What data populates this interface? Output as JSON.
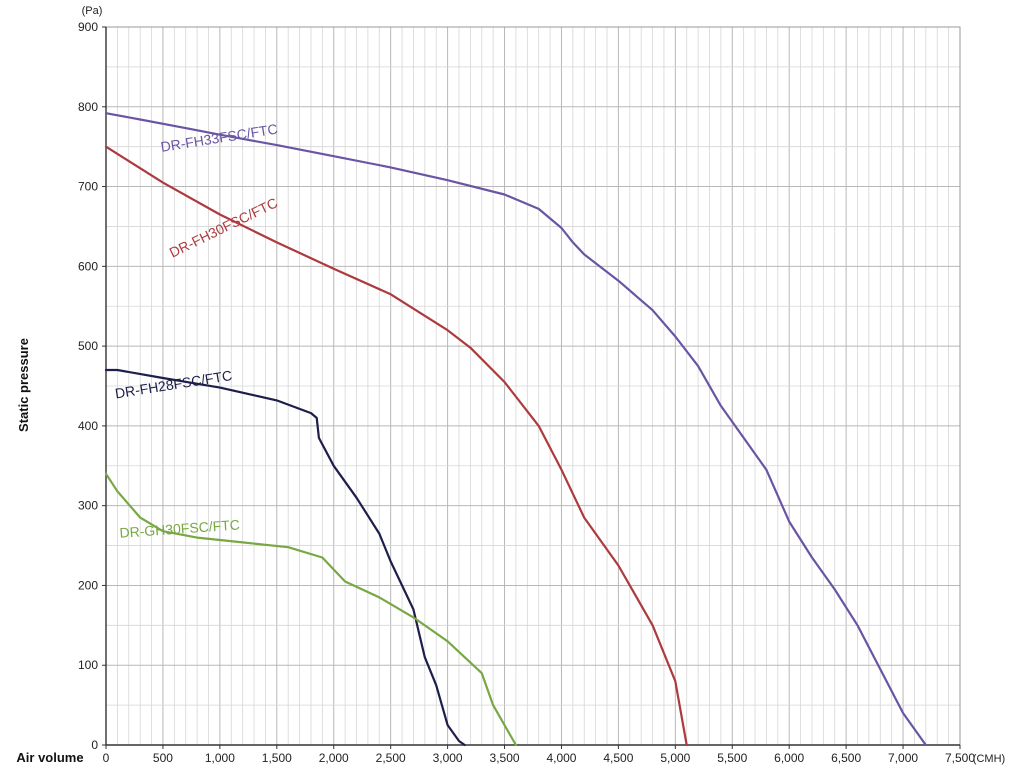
{
  "chart_data": {
    "type": "line",
    "xlabel": "Air volume",
    "ylabel": "Static pressure",
    "x_unit": "(CMH)",
    "y_unit": "(Pa)",
    "xlim": [
      0,
      7500
    ],
    "ylim": [
      0,
      900
    ],
    "x_major_ticks": [
      0,
      500,
      1000,
      1500,
      2000,
      2500,
      3000,
      3500,
      4000,
      4500,
      5000,
      5500,
      6000,
      6500,
      7000,
      7500
    ],
    "x_tick_labels": [
      "0",
      "500",
      "1,000",
      "1,500",
      "2,000",
      "2,500",
      "3,000",
      "3,500",
      "4,000",
      "4,500",
      "5,000",
      "5,500",
      "6,000",
      "6,500",
      "7,000",
      "7,500"
    ],
    "y_major_ticks": [
      0,
      100,
      200,
      300,
      400,
      500,
      600,
      700,
      800,
      900
    ],
    "y_tick_labels": [
      "0",
      "100",
      "200",
      "300",
      "400",
      "500",
      "600",
      "700",
      "800",
      "900"
    ],
    "x_minor_step": 100,
    "y_minor_step": 50,
    "grid": true,
    "series": [
      {
        "name": "DR-FH33FSC/FTC",
        "color": "#6a55a4",
        "label_at": [
          1000,
          755
        ],
        "label_angle": -9,
        "points": [
          [
            0,
            792
          ],
          [
            300,
            784
          ],
          [
            600,
            776
          ],
          [
            1000,
            765
          ],
          [
            1500,
            752
          ],
          [
            2000,
            738
          ],
          [
            2500,
            724
          ],
          [
            3000,
            708
          ],
          [
            3500,
            690
          ],
          [
            3800,
            672
          ],
          [
            4000,
            648
          ],
          [
            4100,
            630
          ],
          [
            4200,
            615
          ],
          [
            4500,
            582
          ],
          [
            4800,
            545
          ],
          [
            5000,
            512
          ],
          [
            5200,
            475
          ],
          [
            5400,
            425
          ],
          [
            5600,
            385
          ],
          [
            5800,
            345
          ],
          [
            6000,
            280
          ],
          [
            6200,
            235
          ],
          [
            6400,
            195
          ],
          [
            6600,
            150
          ],
          [
            6800,
            95
          ],
          [
            7000,
            40
          ],
          [
            7200,
            0
          ]
        ]
      },
      {
        "name": "DR-FH30FSC/FTC",
        "color": "#ad3a3d",
        "label_at": [
          1050,
          643
        ],
        "label_angle": -26,
        "points": [
          [
            0,
            750
          ],
          [
            500,
            705
          ],
          [
            1000,
            665
          ],
          [
            1500,
            630
          ],
          [
            2000,
            597
          ],
          [
            2500,
            565
          ],
          [
            3000,
            520
          ],
          [
            3200,
            498
          ],
          [
            3500,
            455
          ],
          [
            3800,
            400
          ],
          [
            4000,
            345
          ],
          [
            4200,
            285
          ],
          [
            4500,
            225
          ],
          [
            4800,
            150
          ],
          [
            5000,
            80
          ],
          [
            5100,
            0
          ]
        ]
      },
      {
        "name": "DR-FH28FSC/FTC",
        "color": "#1e1e4b",
        "label_at": [
          600,
          446
        ],
        "label_angle": -9,
        "points": [
          [
            0,
            470
          ],
          [
            100,
            470
          ],
          [
            500,
            460
          ],
          [
            1000,
            448
          ],
          [
            1500,
            432
          ],
          [
            1800,
            416
          ],
          [
            1850,
            410
          ],
          [
            1870,
            385
          ],
          [
            2000,
            350
          ],
          [
            2200,
            310
          ],
          [
            2400,
            265
          ],
          [
            2500,
            230
          ],
          [
            2700,
            170
          ],
          [
            2800,
            110
          ],
          [
            2900,
            75
          ],
          [
            3000,
            25
          ],
          [
            3100,
            5
          ],
          [
            3150,
            0
          ]
        ]
      },
      {
        "name": "DR-GH30FSC/FTC",
        "color": "#78a844",
        "label_at": [
          650,
          265
        ],
        "label_angle": -4,
        "points": [
          [
            0,
            340
          ],
          [
            100,
            318
          ],
          [
            300,
            285
          ],
          [
            500,
            268
          ],
          [
            800,
            260
          ],
          [
            1200,
            254
          ],
          [
            1600,
            248
          ],
          [
            1900,
            235
          ],
          [
            2100,
            205
          ],
          [
            2400,
            185
          ],
          [
            2700,
            160
          ],
          [
            3000,
            130
          ],
          [
            3300,
            90
          ],
          [
            3400,
            50
          ],
          [
            3500,
            25
          ],
          [
            3600,
            0
          ]
        ]
      }
    ]
  }
}
